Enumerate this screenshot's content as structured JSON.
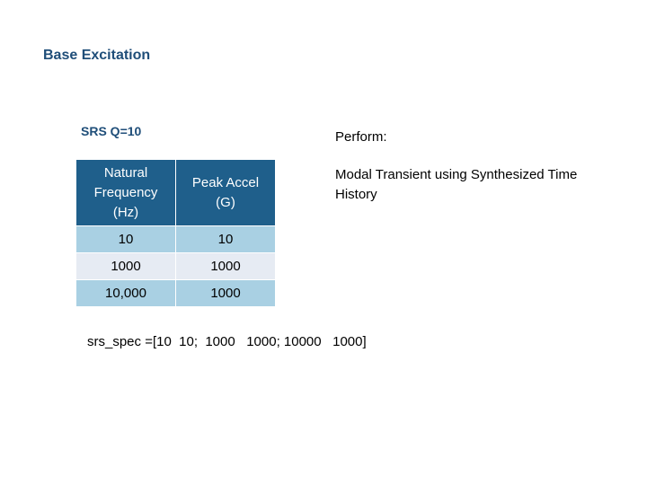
{
  "header": {
    "title": "Base Excitation"
  },
  "table": {
    "caption": "SRS Q=10",
    "columns": [
      "Natural Frequency (Hz)",
      "Peak Accel (G)"
    ],
    "rows": [
      [
        "10",
        "10"
      ],
      [
        "1000",
        "1000"
      ],
      [
        "10,000",
        "1000"
      ]
    ]
  },
  "perform": {
    "label": "Perform:",
    "text": "Modal Transient using Synthesized Time History"
  },
  "code": "srs_spec =[10  10;  1000   1000; 10000   1000]"
}
